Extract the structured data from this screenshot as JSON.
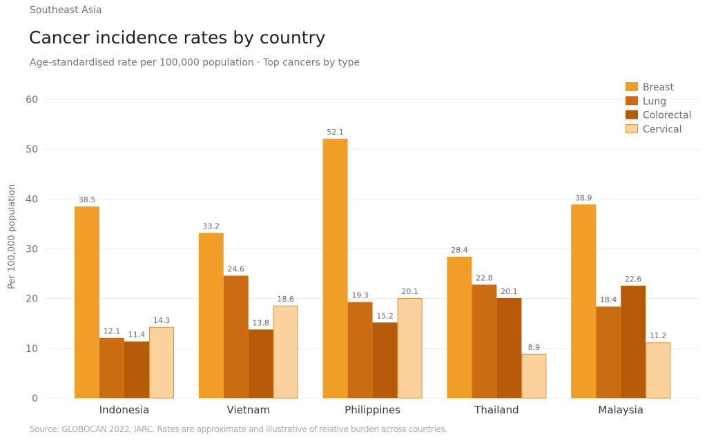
{
  "header": {
    "eyebrow": "Southeast Asia",
    "title": "Cancer incidence rates by country",
    "subtitle": "Age-standardised rate per 100,000 population · Top cancers by type"
  },
  "footer": {
    "source": "Source: GLOBOCAN 2022, IARC. Rates are approximate and illustrative of relative burden across countries."
  },
  "chart_data": {
    "type": "bar",
    "title": "Cancer incidence rates by country",
    "subtitle": "Age-standardised rate per 100,000 population · Top cancers by type",
    "xlabel": "",
    "ylabel": "Per 100,000 population",
    "ylim": [
      0,
      60
    ],
    "yticks": [
      0,
      10,
      20,
      30,
      40,
      50,
      60
    ],
    "grid": true,
    "legend_position": "top-right",
    "categories": [
      "Indonesia",
      "Vietnam",
      "Philippines",
      "Thailand",
      "Malaysia"
    ],
    "series": [
      {
        "name": "Breast",
        "color": "#F09E28",
        "values": [
          38.5,
          33.2,
          52.1,
          28.4,
          38.9
        ]
      },
      {
        "name": "Lung",
        "color": "#CC6D14",
        "values": [
          12.1,
          24.6,
          19.3,
          22.8,
          18.4
        ]
      },
      {
        "name": "Colorectal",
        "color": "#B45A08",
        "values": [
          11.4,
          13.8,
          15.2,
          20.1,
          22.6
        ]
      },
      {
        "name": "Cervical",
        "color": "#F9D29E",
        "stroke": "#E0943A",
        "values": [
          14.3,
          18.6,
          20.1,
          8.9,
          11.2
        ]
      }
    ]
  }
}
